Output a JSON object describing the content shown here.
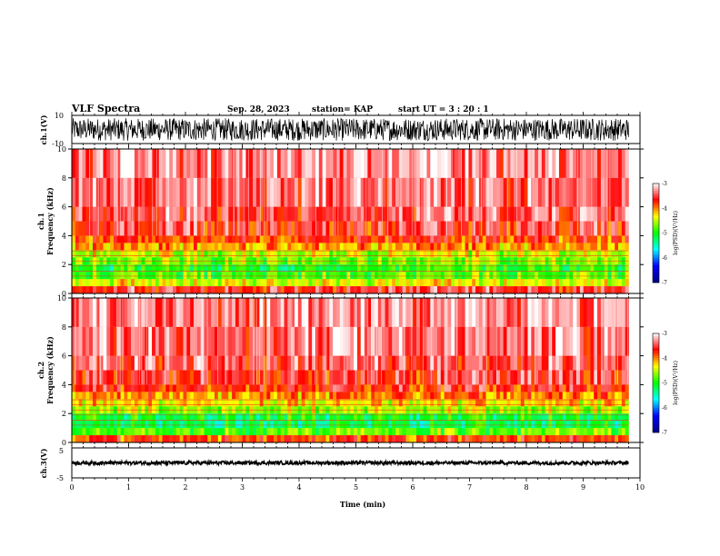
{
  "header": {
    "title": "VLF Spectra",
    "date": "Sep. 28, 2023",
    "station": "station= KAP",
    "start": "start UT =  3 : 20 : 1"
  },
  "chart_data": [
    {
      "type": "line",
      "name": "ch1-waveform",
      "ylabel": "ch.1(V)",
      "ylim": [
        -10,
        10
      ],
      "ytick_labels": [
        "10",
        "-10"
      ],
      "xlim": [
        0,
        10
      ],
      "signal_end_min": 9.8,
      "amplitude_range": [
        -8,
        8
      ]
    },
    {
      "type": "heatmap",
      "name": "ch1-spectrogram",
      "ylabel": "ch.1\nFrequency (kHz)",
      "ylim": [
        0,
        10
      ],
      "ytick_labels": [
        "0",
        "2",
        "4",
        "6",
        "8",
        "10"
      ],
      "xlim": [
        0,
        10
      ],
      "signal_end_min": 9.8,
      "band_edges_khz": [
        0.0,
        0.5,
        1.0,
        1.5,
        2.0,
        2.5,
        3.0,
        3.5,
        4.0,
        5.0,
        6.0,
        8.0,
        10.0
      ],
      "band_log_psd": [
        -3.6,
        -4.4,
        -4.8,
        -5.0,
        -4.7,
        -4.5,
        -4.1,
        -3.8,
        -3.6,
        -3.5,
        -3.4,
        -3.3
      ],
      "colorbar": {
        "label": "log(PSD)(V²/Hz)",
        "range": [
          -7,
          -3
        ],
        "tick_labels": [
          "-3",
          "-4",
          "-5",
          "-6",
          "-7"
        ]
      }
    },
    {
      "type": "heatmap",
      "name": "ch2-spectrogram",
      "ylabel": "ch.2\nFrequency (kHz)",
      "ylim": [
        0,
        10
      ],
      "ytick_labels": [
        "0",
        "2",
        "4",
        "6",
        "8",
        "10"
      ],
      "xlim": [
        0,
        10
      ],
      "signal_end_min": 9.8,
      "band_edges_khz": [
        0.0,
        0.5,
        1.0,
        1.5,
        2.0,
        2.5,
        3.0,
        3.5,
        4.0,
        5.0,
        6.0,
        8.0,
        10.0
      ],
      "band_log_psd": [
        -3.8,
        -4.8,
        -5.2,
        -5.1,
        -4.6,
        -4.3,
        -4.0,
        -3.7,
        -3.6,
        -3.5,
        -3.4,
        -3.3
      ],
      "colorbar": {
        "label": "log(PSD)(V²/Hz)",
        "range": [
          -7,
          -3
        ],
        "tick_labels": [
          "-3",
          "-4",
          "-5",
          "-6",
          "-7"
        ]
      }
    },
    {
      "type": "line",
      "name": "ch3-waveform",
      "ylabel": "ch.3(V)",
      "ylim": [
        -5,
        5
      ],
      "ytick_labels": [
        "5",
        "-5"
      ],
      "xlim": [
        0,
        10
      ],
      "signal_end_min": 9.8,
      "amplitude_range": [
        -0.6,
        0.6
      ],
      "xlabel": "Time (min)",
      "xtick_labels": [
        "0",
        "1",
        "2",
        "3",
        "4",
        "5",
        "6",
        "7",
        "8",
        "9",
        "10"
      ]
    }
  ],
  "colors": {
    "colormap": [
      "#000080",
      "#0000ff",
      "#00ffff",
      "#00ff00",
      "#ffff00",
      "#ff0000",
      "#ffffff"
    ],
    "trace": "#000000"
  }
}
